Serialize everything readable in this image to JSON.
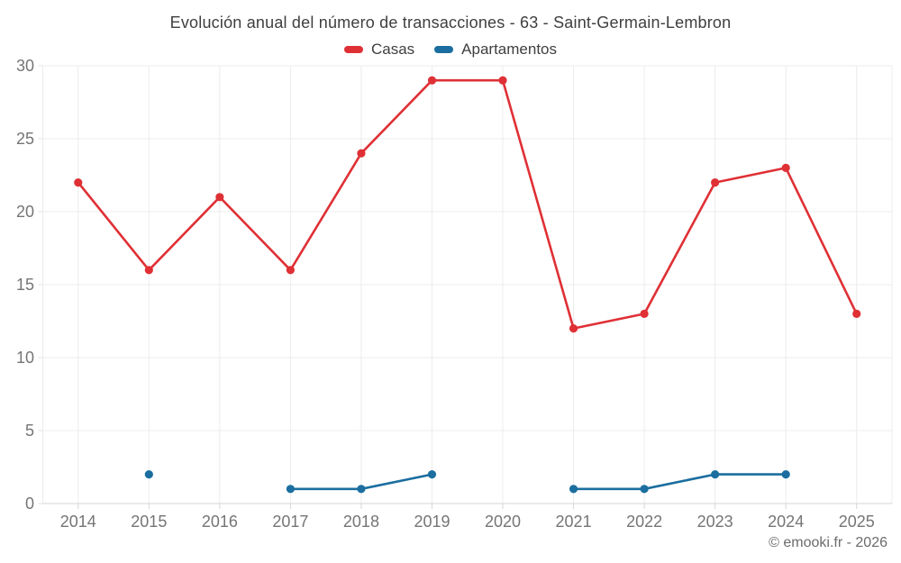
{
  "chart": {
    "title": "Evolución anual del número de transacciones - 63 - Saint-Germain-Lembron",
    "attribution": "© emooki.fr - 2026"
  },
  "chart_data": {
    "type": "line",
    "title": "Evolución anual del número de transacciones - 63 - Saint-Germain-Lembron",
    "categories": [
      "2014",
      "2015",
      "2016",
      "2017",
      "2018",
      "2019",
      "2020",
      "2021",
      "2022",
      "2023",
      "2024",
      "2025"
    ],
    "series": [
      {
        "name": "Casas",
        "color": "#df3035",
        "values": [
          22,
          16,
          21,
          16,
          24,
          29,
          29,
          12,
          13,
          22,
          23,
          13
        ]
      },
      {
        "name": "Apartamentos",
        "color": "#1b6e9f",
        "values": [
          null,
          2,
          null,
          1,
          1,
          2,
          null,
          1,
          1,
          2,
          2,
          null
        ]
      }
    ],
    "ylim": [
      0,
      30
    ],
    "yticks": [
      0,
      5,
      10,
      15,
      20,
      25,
      30
    ],
    "grid": true,
    "legend_position": "top",
    "colors": {
      "grid_line": "#ececec",
      "axis_line": "#d6d6d6",
      "tick_label": "#757575"
    }
  }
}
